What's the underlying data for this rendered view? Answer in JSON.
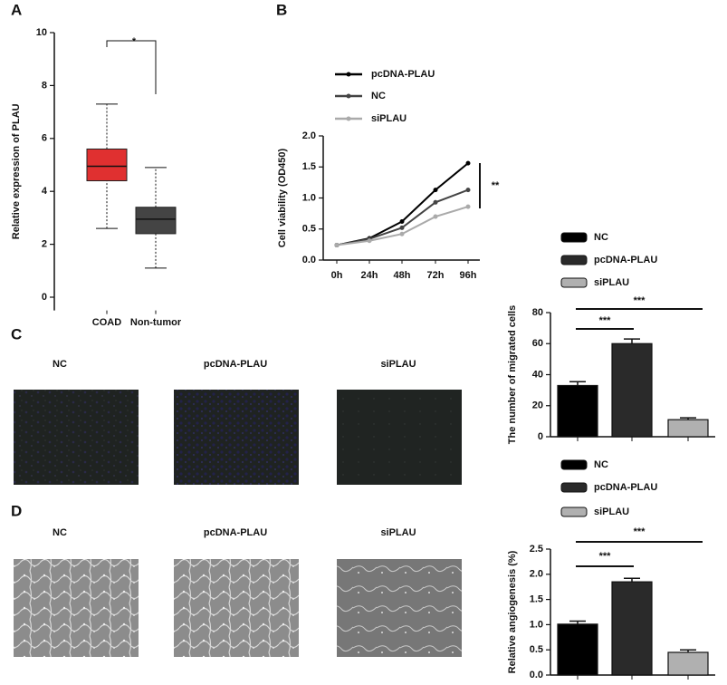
{
  "panel_labels": [
    "A",
    "B",
    "C",
    "D"
  ],
  "image_panels": [
    {
      "captions": [
        "NC",
        "pcDNA-PLAU",
        "siPLAU"
      ]
    },
    {
      "captions": [
        "NC",
        "pcDNA-PLAU",
        "siPLAU"
      ]
    }
  ],
  "chart_data": [
    {
      "type": "box",
      "ylabel": "Relative expression of PLAU",
      "categories": [
        "COAD",
        "Non-tumor"
      ],
      "boxes": [
        {
          "color": "#e03030",
          "whislo": 2.6,
          "q1": 4.4,
          "med": 4.95,
          "q3": 5.6,
          "whishi": 7.3
        },
        {
          "color": "#444444",
          "whislo": 1.1,
          "q1": 2.4,
          "med": 2.95,
          "q3": 3.4,
          "whishi": 4.9
        }
      ],
      "ylim": [
        -0.5,
        10
      ],
      "yticks": [
        0,
        2,
        4,
        6,
        8,
        10
      ],
      "annotations": [
        "*"
      ],
      "annotation_color": "#e03030"
    },
    {
      "type": "line",
      "ylabel": "Cell viability (OD450)",
      "categories": [
        "0h",
        "24h",
        "48h",
        "72h",
        "96h"
      ],
      "series": [
        {
          "name": "pcDNA-PLAU",
          "color": "#000000",
          "values": [
            0.24,
            0.35,
            0.62,
            1.13,
            1.56
          ]
        },
        {
          "name": "NC",
          "color": "#444444",
          "values": [
            0.24,
            0.34,
            0.52,
            0.93,
            1.13
          ]
        },
        {
          "name": "siPLAU",
          "color": "#aaaaaa",
          "values": [
            0.24,
            0.31,
            0.42,
            0.7,
            0.86
          ]
        }
      ],
      "ylim": [
        0,
        2
      ],
      "yticks": [
        {
          "value": 0,
          "label": "0.0"
        },
        {
          "value": 0.5,
          "label": "0.5"
        },
        {
          "value": 1,
          "label": "1.0"
        },
        {
          "value": 1.5,
          "label": "1.5"
        },
        {
          "value": 2,
          "label": "2.0"
        }
      ],
      "annotations": [
        "**"
      ],
      "annotation_color": "#000000"
    },
    {
      "type": "bar",
      "ylabel": "The number of migrated cells",
      "series": [
        {
          "name": "NC",
          "color": "#000000",
          "values": [
            33
          ],
          "errors": [
            2.5
          ]
        },
        {
          "name": "pcDNA-PLAU",
          "color": "#2a2a2a",
          "values": [
            60
          ],
          "errors": [
            3
          ]
        },
        {
          "name": "siPLAU",
          "color": "#b0b0b0",
          "values": [
            11
          ],
          "errors": [
            1.2
          ]
        }
      ],
      "ylim": [
        0,
        80
      ],
      "yticks": [
        0,
        20,
        40,
        60,
        80
      ],
      "annotations": [
        "***",
        "***"
      ],
      "annotation_color": "#000000"
    },
    {
      "type": "bar",
      "ylabel": "Relative angiogenesis (%)",
      "series": [
        {
          "name": "NC",
          "color": "#000000",
          "values": [
            1.01
          ],
          "errors": [
            0.06
          ]
        },
        {
          "name": "pcDNA-PLAU",
          "color": "#2a2a2a",
          "values": [
            1.85
          ],
          "errors": [
            0.07
          ]
        },
        {
          "name": "siPLAU",
          "color": "#b0b0b0",
          "values": [
            0.45
          ],
          "errors": [
            0.05
          ]
        }
      ],
      "ylim": [
        0,
        2.5
      ],
      "yticks": [
        {
          "value": 0,
          "label": "0.0"
        },
        {
          "value": 0.5,
          "label": "0.5"
        },
        {
          "value": 1,
          "label": "1.0"
        },
        {
          "value": 1.5,
          "label": "1.5"
        },
        {
          "value": 2,
          "label": "2.0"
        },
        {
          "value": 2.5,
          "label": "2.5"
        }
      ],
      "annotations": [
        "***",
        "***"
      ],
      "annotation_color": "#000000"
    }
  ]
}
